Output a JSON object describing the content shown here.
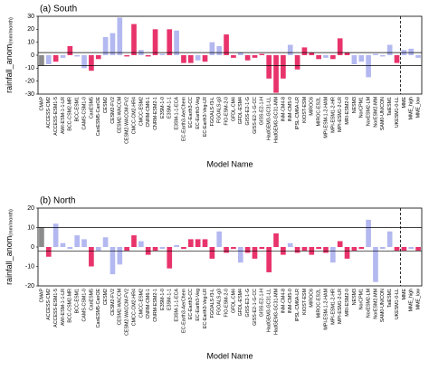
{
  "chart_data": [
    {
      "type": "bar",
      "title": "(a) South",
      "xlabel": "Model Name",
      "ylabel": "rainfall_anom",
      "ylabel_unit": "(mm/month)",
      "categories": [
        "CMAP",
        "ACCESS-CM2",
        "ACCESS-ESM1-5",
        "AWI-ESM-1-1-LR",
        "BCC-CSM2-MR",
        "BCC-ESM1",
        "CAMS-CSM1-0",
        "CanESM5",
        "CanESM5-CanOE",
        "CESM2",
        "CESM2-FV2",
        "CESM2-WACCM",
        "CESM2-WACCM-FV2",
        "CMCC-CM2-HR4",
        "CMCC-ESM2",
        "CNRM-CM6-1",
        "CNRM-ESM2-1",
        "E3SM-1-0",
        "E3SM-1-1",
        "E3SM-1-1-ECA",
        "EC-Earth3-AerChem",
        "EC-Earth3-CC",
        "EC-Earth3-Veg",
        "EC-Earth3-Veg-LR",
        "FGOALS-f3-L",
        "FGOALS-g3",
        "FIO-ESM-2-0",
        "GFDL-CM4",
        "GFDL-ESM4",
        "GISS-E2-1-G",
        "GISS-E2-1-G-CC",
        "GISS-E2-1-H",
        "HadGEM3-GC31-LL",
        "HadGEM3-GC31-MM",
        "INM-CM4-8",
        "INM-CM5-0",
        "IPSL-CM6A-LR",
        "KIOST-ESM",
        "MIROC6",
        "MIROC-ES2L",
        "MPI-ESM-1-2-HAM",
        "MPI-ESM1-2-HR",
        "MPI-ESM1-2-LR",
        "MRI-ESM2-0",
        "NESM3",
        "NorCPM1",
        "NorESM2-LM",
        "NorESM2-MM",
        "SAM0-UNICON",
        "TaiESM1",
        "UKESM1-0-LL",
        "MME",
        "MME_high",
        "MME_low"
      ],
      "values": [
        -8,
        -7,
        -5,
        -2,
        7,
        -1,
        -10,
        -12,
        -3,
        14,
        17,
        29,
        -1,
        24,
        4,
        -1,
        20,
        1,
        20,
        19,
        -6,
        -6,
        -4,
        -5,
        10,
        7,
        16,
        -2,
        2,
        -4,
        -2,
        1,
        -18,
        -29,
        -18,
        8,
        -11,
        6,
        2,
        -3,
        -2,
        -3,
        13,
        2,
        -7,
        -5,
        -17,
        1,
        -1,
        8,
        -6,
        4,
        5,
        -2
      ],
      "colors": [
        "#8c8c8c",
        "#b3b8f0",
        "#e8336b",
        "#b3b8f0",
        "#e8336b",
        "#b3b8f0",
        "#b3b8f0",
        "#e8336b",
        "#e8336b",
        "#b3b8f0",
        "#b3b8f0",
        "#b3b8f0",
        "#e8336b",
        "#e8336b",
        "#b3b8f0",
        "#e8336b",
        "#e8336b",
        "#b3b8f0",
        "#e8336b",
        "#b3b8f0",
        "#e8336b",
        "#e8336b",
        "#b3b8f0",
        "#e8336b",
        "#b3b8f0",
        "#b3b8f0",
        "#e8336b",
        "#e8336b",
        "#b3b8f0",
        "#e8336b",
        "#e8336b",
        "#e8336b",
        "#e8336b",
        "#e8336b",
        "#e8336b",
        "#b3b8f0",
        "#e8336b",
        "#e8336b",
        "#e8336b",
        "#e8336b",
        "#b3b8f0",
        "#e8336b",
        "#e8336b",
        "#e8336b",
        "#b3b8f0",
        "#b3b8f0",
        "#b3b8f0",
        "#b3b8f0",
        "#b3b8f0",
        "#b3b8f0",
        "#e8336b",
        "#b3b8f0",
        "#b3b8f0",
        "#b3b8f0"
      ],
      "label_colors": [
        "#000000",
        "#000000",
        "#cc00cc",
        "#000000",
        "#000000",
        "#cc00cc",
        "#cc00cc",
        "#000000",
        "#000000",
        "#000000",
        "#000000",
        "#000000",
        "#000000",
        "#000000",
        "#000000",
        "#000000",
        "#000000",
        "#000000",
        "#000000",
        "#cc00cc",
        "#000000",
        "#cc00cc",
        "#cc00cc",
        "#000000",
        "#000000",
        "#000000",
        "#000000",
        "#cc00cc",
        "#000000",
        "#000000",
        "#000000",
        "#cc00cc",
        "#000000",
        "#cc00cc",
        "#000000",
        "#000000",
        "#000000",
        "#000000",
        "#000000",
        "#000000",
        "#cc00cc",
        "#000000",
        "#000000",
        "#cc00cc",
        "#cc00cc",
        "#cc00cc",
        "#000000",
        "#000000",
        "#000000",
        "#000000",
        "#000000",
        "#000000",
        "#000000",
        "#000000"
      ],
      "ylim": [
        -30,
        30
      ],
      "yticks": [
        -30,
        -20,
        -10,
        0,
        10,
        20,
        30
      ],
      "reference_lines": [
        2,
        -8
      ]
    },
    {
      "type": "bar",
      "title": "(b) North",
      "xlabel": "Model Name",
      "ylabel": "rainfall_anom",
      "ylabel_unit": "(mm/month)",
      "categories": [
        "CMAP",
        "ACCESS-CM2",
        "ACCESS-ESM1-5",
        "AWI-ESM-1-1-LR",
        "BCC-CSM2-MR",
        "BCC-ESM1",
        "CAMS-CSM1-0",
        "CanESM5",
        "CanESM5-CanOE",
        "CESM2",
        "CESM2-FV2",
        "CESM2-WACCM",
        "CESM2-WACCM-FV2",
        "CMCC-CM2-HR4",
        "CMCC-ESM2",
        "CNRM-CM6-1",
        "CNRM-ESM2-1",
        "E3SM-1-0",
        "E3SM-1-1",
        "E3SM-1-1-ECA",
        "EC-Earth3-AerChem",
        "EC-Earth3-CC",
        "EC-Earth3-Veg",
        "EC-Earth3-Veg-LR",
        "FGOALS-f3-L",
        "FGOALS-g3",
        "FIO-ESM-2-0",
        "GFDL-CM4",
        "GFDL-ESM4",
        "GISS-E2-1-G",
        "GISS-E2-1-G-CC",
        "GISS-E2-1-H",
        "HadGEM3-GC31-LL",
        "HadGEM3-GC31-MM",
        "INM-CM4-8",
        "INM-CM5-0",
        "IPSL-CM6A-LR",
        "KIOST-ESM",
        "MIROC6",
        "MIROC-ES2L",
        "MPI-ESM-1-2-HAM",
        "MPI-ESM1-2-HR",
        "MPI-ESM1-2-LR",
        "MRI-ESM2-0",
        "NESM3",
        "NorCPM1",
        "NorESM2-LM",
        "NorESM2-MM",
        "SAM0-UNICON",
        "TaiESM1",
        "UKESM1-0-LL",
        "MME",
        "MME_high",
        "MME_low"
      ],
      "values": [
        10,
        -5,
        12,
        2,
        -1,
        6,
        4,
        -10,
        -2,
        5,
        -14,
        -9,
        -2,
        6,
        3,
        -4,
        -2,
        -1,
        -11,
        1,
        -1,
        4,
        4,
        4,
        -6,
        8,
        -3,
        -1,
        -8,
        -3,
        -6,
        -1,
        -13,
        7,
        -4,
        2,
        -3,
        -2,
        -4,
        -1,
        -3,
        -8,
        3,
        -6,
        -2,
        -1,
        14,
        -18,
        -1,
        8,
        -2,
        -2,
        -1,
        -2
      ],
      "colors": [
        "#8c8c8c",
        "#e8336b",
        "#b3b8f0",
        "#b3b8f0",
        "#b3b8f0",
        "#b3b8f0",
        "#b3b8f0",
        "#e8336b",
        "#b3b8f0",
        "#b3b8f0",
        "#b3b8f0",
        "#b3b8f0",
        "#e8336b",
        "#e8336b",
        "#b3b8f0",
        "#e8336b",
        "#e8336b",
        "#b3b8f0",
        "#e8336b",
        "#b3b8f0",
        "#e8336b",
        "#e8336b",
        "#e8336b",
        "#e8336b",
        "#e8336b",
        "#b3b8f0",
        "#e8336b",
        "#e8336b",
        "#b3b8f0",
        "#e8336b",
        "#e8336b",
        "#e8336b",
        "#e8336b",
        "#e8336b",
        "#e8336b",
        "#b3b8f0",
        "#e8336b",
        "#e8336b",
        "#e8336b",
        "#e8336b",
        "#e8336b",
        "#b3b8f0",
        "#e8336b",
        "#e8336b",
        "#e8336b",
        "#e8336b",
        "#b3b8f0",
        "#b3b8f0",
        "#b3b8f0",
        "#b3b8f0",
        "#e8336b",
        "#e8336b",
        "#b3b8f0",
        "#e8336b"
      ],
      "label_colors": [
        "#000000",
        "#000000",
        "#cc00cc",
        "#000000",
        "#000000",
        "#cc00cc",
        "#cc00cc",
        "#000000",
        "#000000",
        "#000000",
        "#000000",
        "#000000",
        "#000000",
        "#000000",
        "#000000",
        "#000000",
        "#000000",
        "#000000",
        "#000000",
        "#cc00cc",
        "#000000",
        "#cc00cc",
        "#cc00cc",
        "#000000",
        "#000000",
        "#000000",
        "#000000",
        "#cc00cc",
        "#000000",
        "#000000",
        "#000000",
        "#cc00cc",
        "#000000",
        "#cc00cc",
        "#000000",
        "#000000",
        "#000000",
        "#000000",
        "#000000",
        "#000000",
        "#cc00cc",
        "#000000",
        "#000000",
        "#cc00cc",
        "#cc00cc",
        "#cc00cc",
        "#000000",
        "#000000",
        "#000000",
        "#000000",
        "#000000",
        "#000000",
        "#000000",
        "#000000"
      ],
      "ylim": [
        -20,
        20
      ],
      "yticks": [
        -20,
        -10,
        0,
        10,
        20
      ],
      "reference_lines": [
        10,
        -2
      ]
    }
  ]
}
